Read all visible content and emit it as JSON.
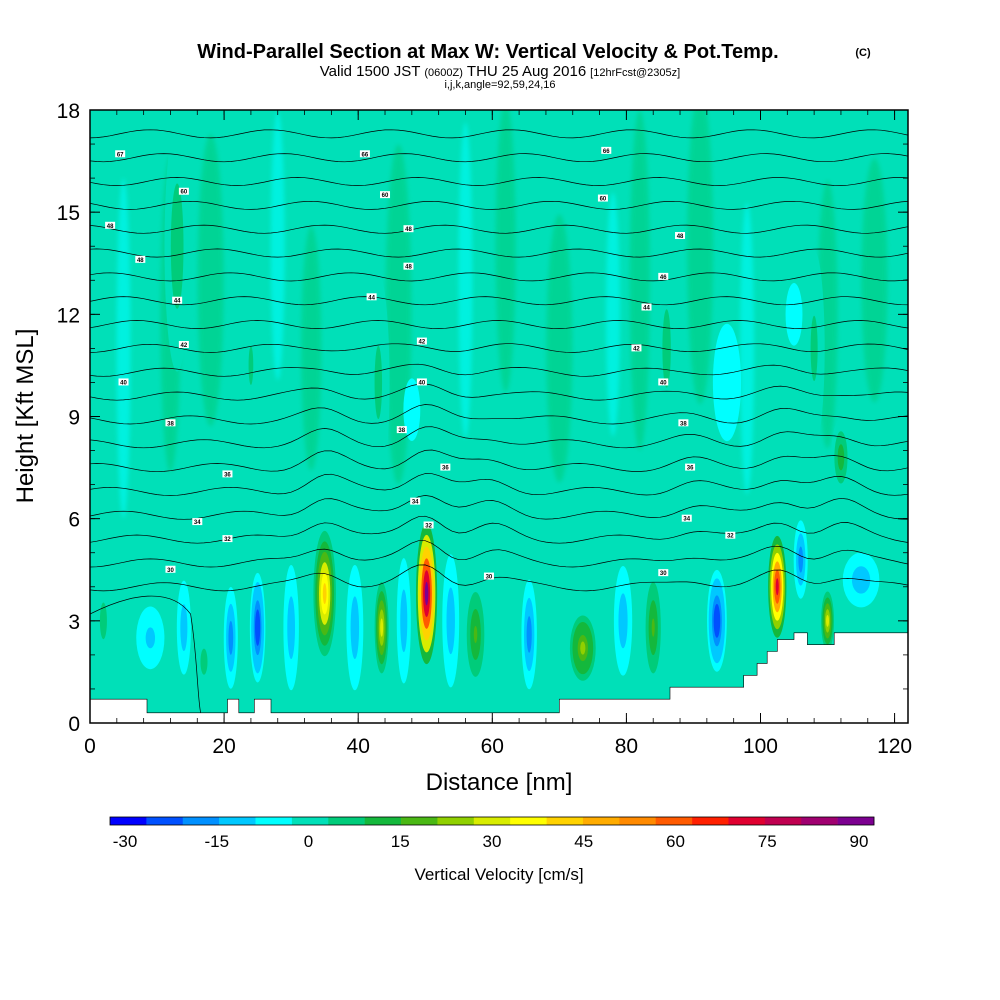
{
  "title": {
    "main": "Wind-Parallel Section at Max W: Vertical Velocity & Pot.Temp.",
    "copyright": "(C)",
    "valid_prefix": "Valid 1500 JST",
    "valid_zulu": "(0600Z)",
    "valid_date": "THU 25 Aug 2016",
    "forecast": "[12hrFcst@2305z]",
    "indices": "i,j,k,angle=92,59,24,16"
  },
  "colors": {
    "background_field": "#00e0b8",
    "terrain": "#ffffff",
    "contour": "#000000"
  },
  "chart_data": {
    "type": "heatmap",
    "xlabel": "Distance [nm]",
    "ylabel": "Height [Kft MSL]",
    "xlim": [
      0,
      122
    ],
    "ylim": [
      0,
      18
    ],
    "x_ticks": [
      0,
      20,
      40,
      60,
      80,
      100,
      120
    ],
    "y_ticks": [
      0,
      3,
      6,
      9,
      12,
      15,
      18
    ],
    "colorbar": {
      "label": "Vertical Velocity [cm/s]",
      "min": -30,
      "max": 96,
      "step": 6,
      "tick_values": [
        -30,
        -15,
        0,
        15,
        30,
        45,
        60,
        75,
        90
      ],
      "tick_labels": [
        "-30",
        "-15",
        "0",
        "15",
        "30",
        "45",
        "60",
        "75",
        "90"
      ],
      "colors": [
        "#0000ff",
        "#0050ff",
        "#0090ff",
        "#00c8ff",
        "#00ffff",
        "#00e0b8",
        "#00cc7a",
        "#14b83c",
        "#4ab814",
        "#90d000",
        "#d8ec00",
        "#ffff00",
        "#ffd200",
        "#ffac00",
        "#ff8a00",
        "#ff5a00",
        "#ff2000",
        "#e00030",
        "#c00050",
        "#a00070",
        "#7c0090"
      ]
    },
    "series": [
      {
        "name": "Vertical velocity cores",
        "points": [
          {
            "x": 35.0,
            "y": 3.8,
            "value": 45,
            "sx": 1.6,
            "sy": 1.6
          },
          {
            "x": 43.5,
            "y": 2.8,
            "value": 35,
            "sx": 1.2,
            "sy": 1.4
          },
          {
            "x": 50.2,
            "y": 3.8,
            "value": 90,
            "sx": 1.5,
            "sy": 1.8
          },
          {
            "x": 57.5,
            "y": 2.6,
            "value": 20,
            "sx": 1.5,
            "sy": 1.3
          },
          {
            "x": 73.5,
            "y": 2.2,
            "value": 25,
            "sx": 2.2,
            "sy": 1.0
          },
          {
            "x": 84.0,
            "y": 2.8,
            "value": 18,
            "sx": 1.3,
            "sy": 1.4
          },
          {
            "x": 102.5,
            "y": 4.0,
            "value": 75,
            "sx": 1.3,
            "sy": 1.3
          },
          {
            "x": 110.0,
            "y": 3.0,
            "value": 35,
            "sx": 1.1,
            "sy": 0.9
          },
          {
            "x": 112.0,
            "y": 7.8,
            "value": 15,
            "sx": 1.4,
            "sy": 1.0
          },
          {
            "x": 21.0,
            "y": 2.5,
            "value": -15,
            "sx": 1.0,
            "sy": 1.3
          },
          {
            "x": 25.0,
            "y": 2.8,
            "value": -22,
            "sx": 1.1,
            "sy": 1.4
          },
          {
            "x": 30.0,
            "y": 2.8,
            "value": -10,
            "sx": 1.1,
            "sy": 1.6
          },
          {
            "x": 39.5,
            "y": 2.8,
            "value": -12,
            "sx": 1.2,
            "sy": 1.6
          },
          {
            "x": 46.8,
            "y": 3.0,
            "value": -10,
            "sx": 1.0,
            "sy": 1.6
          },
          {
            "x": 53.8,
            "y": 3.0,
            "value": -12,
            "sx": 1.2,
            "sy": 1.7
          },
          {
            "x": 65.5,
            "y": 2.6,
            "value": -18,
            "sx": 1.1,
            "sy": 1.4
          },
          {
            "x": 79.5,
            "y": 3.0,
            "value": -10,
            "sx": 1.3,
            "sy": 1.4
          },
          {
            "x": 93.5,
            "y": 3.0,
            "value": -22,
            "sx": 1.4,
            "sy": 1.3
          },
          {
            "x": 106.0,
            "y": 4.8,
            "value": -15,
            "sx": 1.0,
            "sy": 1.0
          },
          {
            "x": 115.0,
            "y": 4.2,
            "value": -10,
            "sx": 2.6,
            "sy": 0.7
          },
          {
            "x": 9.0,
            "y": 2.5,
            "value": -8,
            "sx": 2.0,
            "sy": 0.8
          },
          {
            "x": 14.0,
            "y": 2.8,
            "value": -10,
            "sx": 1.0,
            "sy": 1.2
          },
          {
            "x": 17.0,
            "y": 1.8,
            "value": 8,
            "sx": 1.5,
            "sy": 1.0
          },
          {
            "x": 95.0,
            "y": 10.0,
            "value": -6,
            "sx": 2.0,
            "sy": 1.5
          },
          {
            "x": 105.0,
            "y": 12.0,
            "value": -6,
            "sx": 1.2,
            "sy": 0.8
          },
          {
            "x": 48.0,
            "y": 9.2,
            "value": -6,
            "sx": 1.2,
            "sy": 0.8
          },
          {
            "x": 13.0,
            "y": 14.0,
            "value": 10,
            "sx": 1.8,
            "sy": 3.2
          },
          {
            "x": 24.0,
            "y": 10.5,
            "value": 6,
            "sx": 2.0,
            "sy": 3.0
          },
          {
            "x": 43.0,
            "y": 10.0,
            "value": 8,
            "sx": 1.6,
            "sy": 2.8
          },
          {
            "x": 86.0,
            "y": 11.0,
            "value": 8,
            "sx": 1.8,
            "sy": 3.0
          },
          {
            "x": 108.0,
            "y": 11.0,
            "value": 8,
            "sx": 1.5,
            "sy": 2.5
          },
          {
            "x": 2.0,
            "y": 3.0,
            "value": 8,
            "sx": 1.5,
            "sy": 1.4
          }
        ]
      },
      {
        "name": "Potential temperature contours",
        "labels": [
          {
            "x": 4.5,
            "y": 16.7,
            "text": "67"
          },
          {
            "x": 41.0,
            "y": 16.7,
            "text": "66"
          },
          {
            "x": 77.0,
            "y": 16.8,
            "text": "66"
          },
          {
            "x": 14.0,
            "y": 15.6,
            "text": "60"
          },
          {
            "x": 44.0,
            "y": 15.5,
            "text": "60"
          },
          {
            "x": 76.5,
            "y": 15.4,
            "text": "60"
          },
          {
            "x": 3.0,
            "y": 14.6,
            "text": "48"
          },
          {
            "x": 47.5,
            "y": 14.5,
            "text": "48"
          },
          {
            "x": 88.0,
            "y": 14.3,
            "text": "48"
          },
          {
            "x": 7.5,
            "y": 13.6,
            "text": "48"
          },
          {
            "x": 47.5,
            "y": 13.4,
            "text": "48"
          },
          {
            "x": 85.5,
            "y": 13.1,
            "text": "46"
          },
          {
            "x": 13.0,
            "y": 12.4,
            "text": "44"
          },
          {
            "x": 42.0,
            "y": 12.5,
            "text": "44"
          },
          {
            "x": 83.0,
            "y": 12.2,
            "text": "44"
          },
          {
            "x": 14.0,
            "y": 11.1,
            "text": "42"
          },
          {
            "x": 49.5,
            "y": 11.2,
            "text": "42"
          },
          {
            "x": 81.5,
            "y": 11.0,
            "text": "42"
          },
          {
            "x": 5.0,
            "y": 10.0,
            "text": "40"
          },
          {
            "x": 49.5,
            "y": 10.0,
            "text": "40"
          },
          {
            "x": 85.5,
            "y": 10.0,
            "text": "40"
          },
          {
            "x": 12.0,
            "y": 8.8,
            "text": "38"
          },
          {
            "x": 46.5,
            "y": 8.6,
            "text": "38"
          },
          {
            "x": 88.5,
            "y": 8.8,
            "text": "38"
          },
          {
            "x": 20.5,
            "y": 7.3,
            "text": "36"
          },
          {
            "x": 53.0,
            "y": 7.5,
            "text": "36"
          },
          {
            "x": 89.5,
            "y": 7.5,
            "text": "36"
          },
          {
            "x": 16.0,
            "y": 5.9,
            "text": "34"
          },
          {
            "x": 48.5,
            "y": 6.5,
            "text": "34"
          },
          {
            "x": 89.0,
            "y": 6.0,
            "text": "34"
          },
          {
            "x": 20.5,
            "y": 5.4,
            "text": "32"
          },
          {
            "x": 50.5,
            "y": 5.8,
            "text": "32"
          },
          {
            "x": 95.5,
            "y": 5.5,
            "text": "32"
          },
          {
            "x": 12.0,
            "y": 4.5,
            "text": "30"
          },
          {
            "x": 59.5,
            "y": 4.3,
            "text": "30"
          },
          {
            "x": 85.5,
            "y": 4.4,
            "text": "30"
          }
        ]
      }
    ],
    "terrain_top_kft": [
      {
        "x": 0,
        "y": 0.7
      },
      {
        "x": 8.5,
        "y": 0.7
      },
      {
        "x": 8.5,
        "y": 0.3
      },
      {
        "x": 20.5,
        "y": 0.3
      },
      {
        "x": 20.5,
        "y": 0.7
      },
      {
        "x": 22.2,
        "y": 0.7
      },
      {
        "x": 22.2,
        "y": 0.3
      },
      {
        "x": 24.5,
        "y": 0.3
      },
      {
        "x": 24.5,
        "y": 0.7
      },
      {
        "x": 27,
        "y": 0.7
      },
      {
        "x": 27,
        "y": 0.3
      },
      {
        "x": 70,
        "y": 0.3
      },
      {
        "x": 70,
        "y": 0.7
      },
      {
        "x": 86.5,
        "y": 0.7
      },
      {
        "x": 86.5,
        "y": 1.05
      },
      {
        "x": 97.5,
        "y": 1.05
      },
      {
        "x": 97.5,
        "y": 1.4
      },
      {
        "x": 99.5,
        "y": 1.4
      },
      {
        "x": 99.5,
        "y": 1.75
      },
      {
        "x": 101,
        "y": 1.75
      },
      {
        "x": 101,
        "y": 2.1
      },
      {
        "x": 102.5,
        "y": 2.1
      },
      {
        "x": 102.5,
        "y": 2.45
      },
      {
        "x": 105,
        "y": 2.45
      },
      {
        "x": 105,
        "y": 2.65
      },
      {
        "x": 107,
        "y": 2.65
      },
      {
        "x": 107,
        "y": 2.3
      },
      {
        "x": 111,
        "y": 2.3
      },
      {
        "x": 111,
        "y": 2.65
      },
      {
        "x": 122,
        "y": 2.65
      }
    ]
  }
}
